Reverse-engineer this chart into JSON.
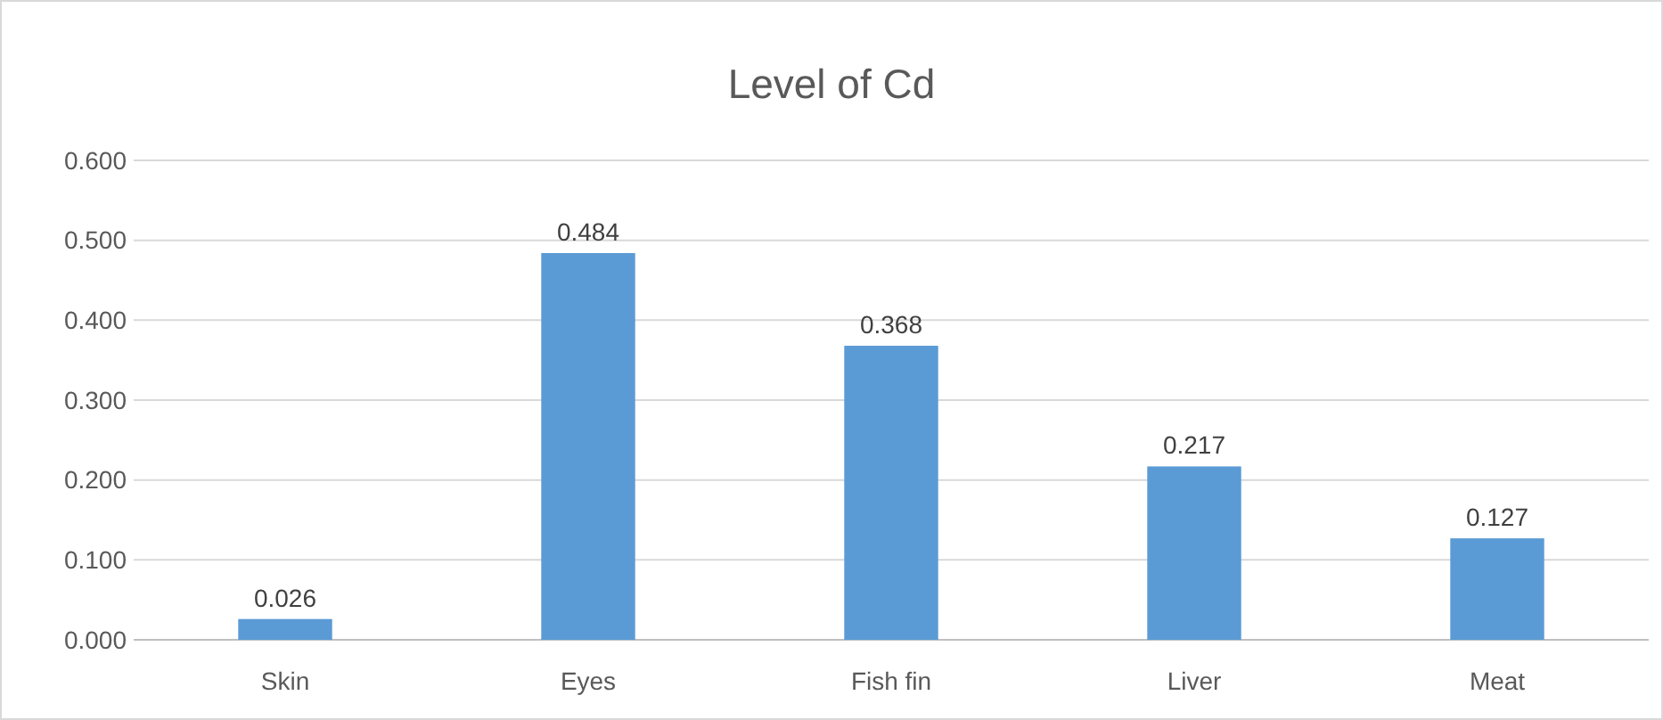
{
  "chart_data": {
    "type": "bar",
    "title": "Level of Cd",
    "categories": [
      "Skin",
      "Eyes",
      "Fish fin",
      "Liver",
      "Meat"
    ],
    "values": [
      0.026,
      0.484,
      0.368,
      0.217,
      0.127
    ],
    "color": "#5b9bd5",
    "ylim": [
      0,
      0.6
    ],
    "yticks": [
      {
        "value": 0,
        "label": "0.000"
      },
      {
        "value": 0.1,
        "label": "0.100"
      },
      {
        "value": 0.2,
        "label": "0.200"
      },
      {
        "value": 0.3,
        "label": "0.300"
      },
      {
        "value": 0.4,
        "label": "0.400"
      },
      {
        "value": 0.5,
        "label": "0.500"
      },
      {
        "value": 0.6,
        "label": "0.600"
      }
    ],
    "grid": "y",
    "data_labels": true
  }
}
